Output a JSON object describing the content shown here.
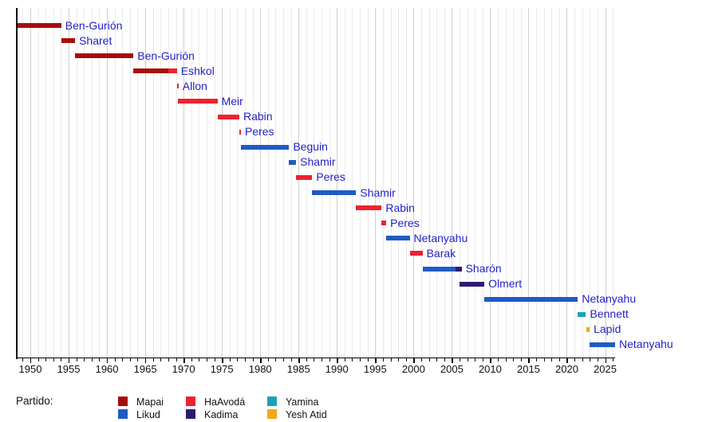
{
  "chart_data": {
    "type": "timeline",
    "title": "",
    "x_axis": {
      "min": 1948.2,
      "max": 2026.3,
      "tick_start": 1949,
      "tick_end": 2026,
      "minor_tick_interval": 1,
      "major_tick_interval": 5,
      "major_ticks": [
        1950,
        1955,
        1960,
        1965,
        1970,
        1975,
        1980,
        1985,
        1990,
        1995,
        2000,
        2005,
        2010,
        2015,
        2020,
        2025
      ]
    },
    "label_color": "#2222cc",
    "parties": {
      "Mapai": "#a80c0c",
      "Likud": "#1f5bc4",
      "HaAvodá": "#ee2130",
      "Kadima": "#2c1a72",
      "Yamina": "#1aa3b8",
      "Yesh Atid": "#f2a71b"
    },
    "bars": [
      {
        "label": "Ben-Gurión",
        "segments": [
          {
            "start": 1948.37,
            "end": 1954.04,
            "party": "Mapai"
          }
        ]
      },
      {
        "label": "Sharet",
        "segments": [
          {
            "start": 1954.04,
            "end": 1955.84,
            "party": "Mapai"
          }
        ]
      },
      {
        "label": "Ben-Gurión",
        "segments": [
          {
            "start": 1955.84,
            "end": 1963.46,
            "party": "Mapai"
          }
        ]
      },
      {
        "label": "Eshkol",
        "segments": [
          {
            "start": 1963.46,
            "end": 1968.04,
            "party": "Mapai"
          },
          {
            "start": 1968.04,
            "end": 1969.13,
            "party": "HaAvodá"
          }
        ]
      },
      {
        "label": "Allon",
        "segments": [
          {
            "start": 1969.13,
            "end": 1969.25,
            "party": "HaAvodá"
          }
        ]
      },
      {
        "label": "Meir",
        "segments": [
          {
            "start": 1969.25,
            "end": 1974.42,
            "party": "HaAvodá"
          }
        ]
      },
      {
        "label": "Rabin",
        "segments": [
          {
            "start": 1974.42,
            "end": 1977.27,
            "party": "HaAvodá"
          }
        ]
      },
      {
        "label": "Peres",
        "segments": [
          {
            "start": 1977.27,
            "end": 1977.45,
            "party": "HaAvodá"
          }
        ]
      },
      {
        "label": "Beguin",
        "segments": [
          {
            "start": 1977.45,
            "end": 1983.76,
            "party": "Likud"
          }
        ]
      },
      {
        "label": "Shamir",
        "segments": [
          {
            "start": 1983.76,
            "end": 1984.68,
            "party": "Likud"
          }
        ]
      },
      {
        "label": "Peres",
        "segments": [
          {
            "start": 1984.68,
            "end": 1986.78,
            "party": "HaAvodá"
          }
        ]
      },
      {
        "label": "Shamir",
        "segments": [
          {
            "start": 1986.78,
            "end": 1992.51,
            "party": "Likud"
          }
        ]
      },
      {
        "label": "Rabin",
        "segments": [
          {
            "start": 1992.51,
            "end": 1995.84,
            "party": "HaAvodá"
          }
        ]
      },
      {
        "label": "Peres",
        "segments": [
          {
            "start": 1995.84,
            "end": 1996.44,
            "party": "HaAvodá"
          }
        ]
      },
      {
        "label": "Netanyahu",
        "segments": [
          {
            "start": 1996.44,
            "end": 1999.5,
            "party": "Likud"
          }
        ]
      },
      {
        "label": "Barak",
        "segments": [
          {
            "start": 1999.5,
            "end": 2001.17,
            "party": "HaAvodá"
          }
        ]
      },
      {
        "label": "Sharón",
        "segments": [
          {
            "start": 2001.17,
            "end": 2005.45,
            "party": "Likud"
          },
          {
            "start": 2005.45,
            "end": 2006.27,
            "party": "Kadima"
          }
        ]
      },
      {
        "label": "Olmert",
        "segments": [
          {
            "start": 2006.01,
            "end": 2009.24,
            "party": "Kadima"
          }
        ]
      },
      {
        "label": "Netanyahu",
        "segments": [
          {
            "start": 2009.24,
            "end": 2021.45,
            "party": "Likud"
          }
        ]
      },
      {
        "label": "Bennett",
        "segments": [
          {
            "start": 2021.45,
            "end": 2022.5,
            "party": "Yamina"
          }
        ]
      },
      {
        "label": "Lapid",
        "segments": [
          {
            "start": 2022.5,
            "end": 2022.98,
            "party": "Yesh Atid"
          }
        ]
      },
      {
        "label": "Netanyahu",
        "segments": [
          {
            "start": 2022.98,
            "end": 2026.3,
            "party": "Likud"
          }
        ]
      }
    ],
    "legend": {
      "title": "Partido:",
      "entries": [
        {
          "label": "Mapai",
          "color": "#a80c0c"
        },
        {
          "label": "Likud",
          "color": "#1f5bc4"
        },
        {
          "label": "HaAvodá",
          "color": "#ee2130"
        },
        {
          "label": "Kadima",
          "color": "#2c1a72"
        },
        {
          "label": "Yamina",
          "color": "#1aa3b8"
        },
        {
          "label": "Yesh Atid",
          "color": "#f2a71b"
        }
      ]
    }
  }
}
